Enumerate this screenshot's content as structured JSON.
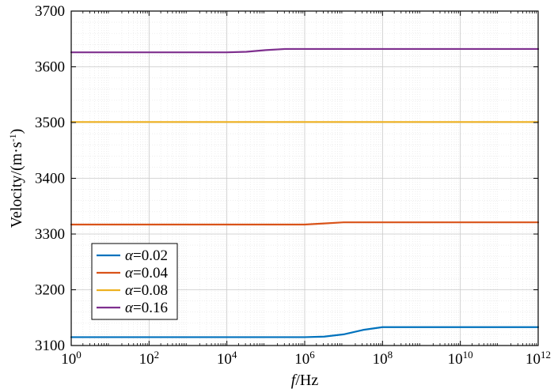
{
  "chart_data": {
    "type": "line",
    "xlabel": {
      "italic": "f",
      "rest": "/Hz"
    },
    "ylabel": {
      "main": "Velocity/(m·s",
      "sup": "-1",
      "tail": ")"
    },
    "xscale": "log",
    "xlim": [
      1,
      1000000000000
    ],
    "ylim": [
      3100,
      3700
    ],
    "x_tick_labels": [
      {
        "base": "10",
        "exp": "0"
      },
      {
        "base": "10",
        "exp": "2"
      },
      {
        "base": "10",
        "exp": "4"
      },
      {
        "base": "10",
        "exp": "6"
      },
      {
        "base": "10",
        "exp": "8"
      },
      {
        "base": "10",
        "exp": "10"
      },
      {
        "base": "10",
        "exp": "12"
      }
    ],
    "y_ticks": [
      3100,
      3200,
      3300,
      3400,
      3500,
      3600,
      3700
    ],
    "grid": true,
    "legend_position": "bottom-left",
    "series": [
      {
        "name": "α=0.02",
        "name_symbol": "α",
        "name_rest": "=0.02",
        "color": "#0072BD",
        "x": [
          1,
          10000,
          1000000,
          3160000,
          10000000,
          31600000,
          100000000,
          1000000000000
        ],
        "y": [
          3115,
          3115,
          3115,
          3116,
          3120,
          3128,
          3133,
          3133
        ]
      },
      {
        "name": "α=0.04",
        "name_symbol": "α",
        "name_rest": "=0.04",
        "color": "#D95319",
        "x": [
          1,
          100000,
          1000000,
          3160000,
          10000000,
          100000000,
          1000000000000
        ],
        "y": [
          3317,
          3317,
          3317,
          3319,
          3321,
          3321,
          3321
        ]
      },
      {
        "name": "α=0.08",
        "name_symbol": "α",
        "name_rest": "=0.08",
        "color": "#EDB120",
        "x": [
          1,
          1000000000000
        ],
        "y": [
          3501,
          3501
        ]
      },
      {
        "name": "α=0.16",
        "name_symbol": "α",
        "name_rest": "=0.16",
        "color": "#7E2F8E",
        "x": [
          1,
          10000,
          31600,
          100000,
          316000,
          1000000,
          1000000000000
        ],
        "y": [
          3626,
          3626,
          3627,
          3630,
          3632,
          3632,
          3632
        ]
      }
    ]
  }
}
